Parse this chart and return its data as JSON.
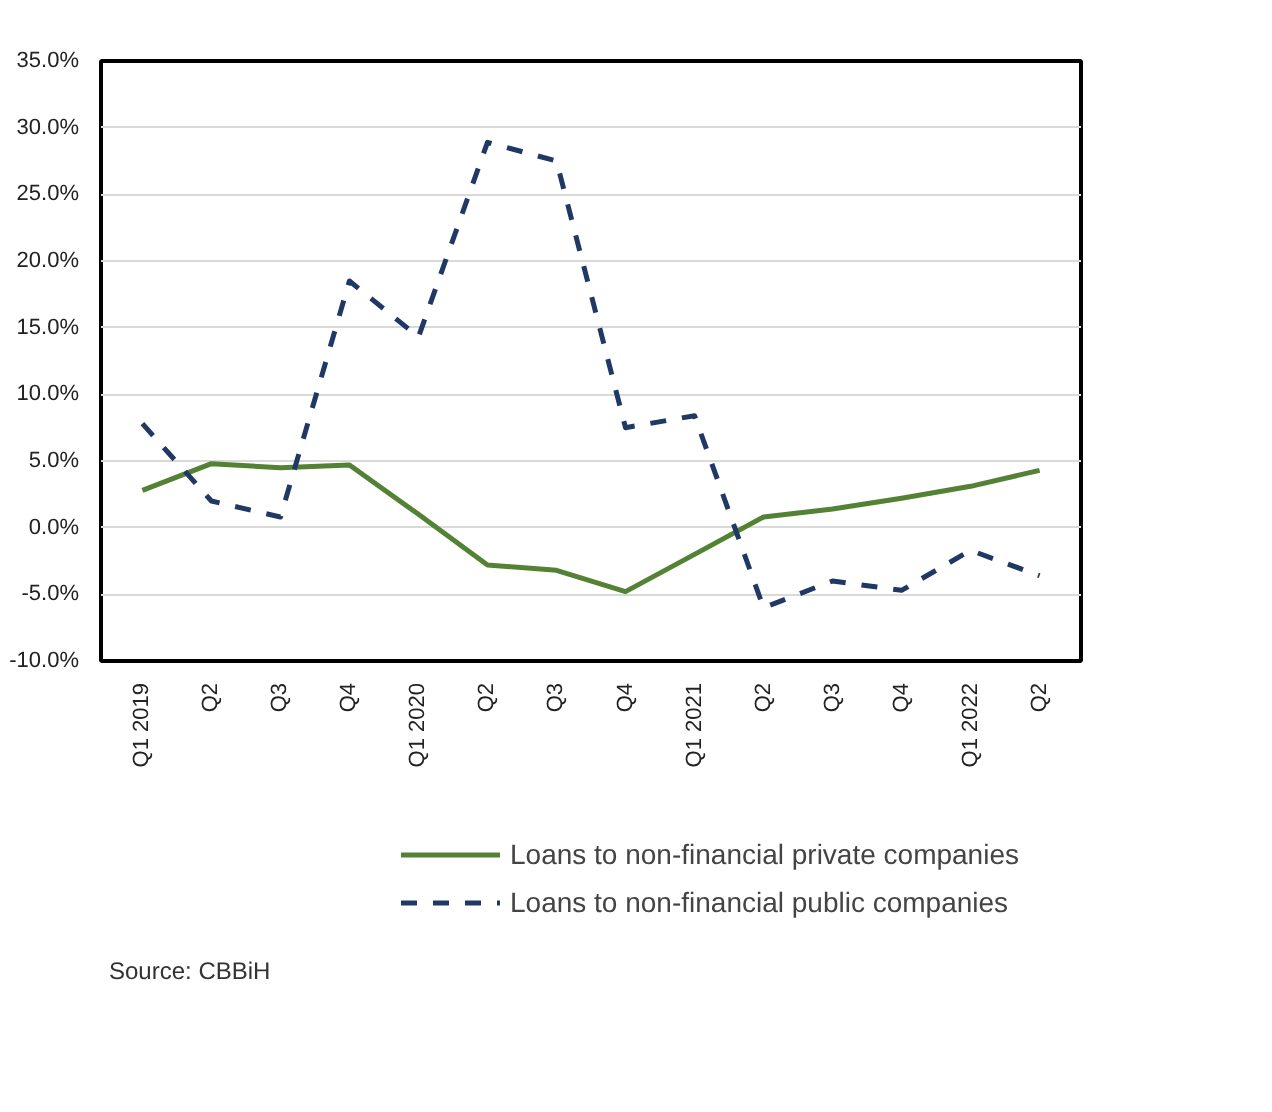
{
  "chart_data": {
    "type": "line",
    "categories": [
      "Q1 2019",
      "Q2",
      "Q3",
      "Q4",
      "Q1 2020",
      "Q2",
      "Q3",
      "Q4",
      "Q1 2021",
      "Q2",
      "Q3",
      "Q4",
      "Q1 2022",
      "Q2"
    ],
    "series": [
      {
        "name": "Loans to non-financial private companies",
        "color": "#548235",
        "line_style": "solid",
        "values": [
          2.8,
          4.8,
          4.5,
          4.7,
          1.0,
          -2.8,
          -3.2,
          -4.8,
          -2.0,
          0.8,
          1.4,
          2.2,
          3.1,
          4.3
        ]
      },
      {
        "name": "Loans to non-financial public companies",
        "color": "#1f3864",
        "line_style": "dashed",
        "values": [
          7.8,
          2.0,
          0.8,
          18.5,
          14.3,
          28.9,
          27.5,
          7.5,
          8.4,
          -6.0,
          -4.0,
          -4.7,
          -1.7,
          -3.6
        ]
      }
    ],
    "ylim": [
      -10,
      35
    ],
    "yticks": [
      {
        "value": -10,
        "label": "-10.0%"
      },
      {
        "value": -5,
        "label": "-5.0%"
      },
      {
        "value": 0,
        "label": "0.0%"
      },
      {
        "value": 5,
        "label": "5.0%"
      },
      {
        "value": 10,
        "label": "10.0%"
      },
      {
        "value": 15,
        "label": "15.0%"
      },
      {
        "value": 20,
        "label": "20.0%"
      },
      {
        "value": 25,
        "label": "25.0%"
      },
      {
        "value": 30,
        "label": "30.0%"
      },
      {
        "value": 35,
        "label": "35.0%"
      }
    ],
    "grid": "y",
    "legend": "bottom",
    "marker": "none",
    "annotations": [
      "Source: CBBiH"
    ]
  }
}
